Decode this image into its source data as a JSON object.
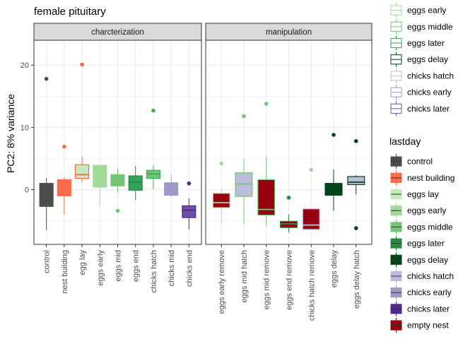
{
  "chart_data": {
    "type": "boxplot",
    "title": "female pituitary",
    "xlabel": "",
    "ylabel": "PC2: 8% variance",
    "ylim": [
      -8.8,
      24
    ],
    "yticks": [
      -10,
      0,
      10,
      20
    ],
    "grid": true,
    "facets": [
      {
        "label": "charcterization",
        "categories": [
          "control",
          "nest building",
          "egg lay",
          "eggs early",
          "eggs mid",
          "eggs end",
          "chicks hatch",
          "chicks mid",
          "chicks end"
        ],
        "boxes": [
          {
            "category": "control",
            "color": "#4d4d4d",
            "fill": "#4d4d4d",
            "whisker_low": -6.5,
            "q1": -2.7,
            "median": -1.4,
            "q3": 1.0,
            "whisker_high": 1.9,
            "outliers": [
              17.8
            ]
          },
          {
            "category": "nest building",
            "color": "#fb6a4a",
            "fill": "#fb6a4a",
            "whisker_low": -4.0,
            "q1": -1.0,
            "median": -0.5,
            "q3": 1.6,
            "whisker_high": 2.0,
            "outliers": [
              6.9
            ]
          },
          {
            "category": "egg lay",
            "color": "#fb6a4a",
            "fill": "#c7e9c0",
            "whisker_low": 1.2,
            "q1": 1.8,
            "median": 2.4,
            "q3": 4.0,
            "whisker_high": 5.3,
            "outliers": [
              20.1
            ]
          },
          {
            "category": "eggs early",
            "color": "#a1d99b",
            "fill": "#a1d99b",
            "whisker_low": -2.7,
            "q1": 0.4,
            "median": 0.6,
            "q3": 3.9,
            "whisker_high": 4.0,
            "outliers": []
          },
          {
            "category": "eggs mid",
            "color": "#74c476",
            "fill": "#74c476",
            "whisker_low": -0.5,
            "q1": 0.6,
            "median": 1.2,
            "q3": 2.4,
            "whisker_high": 3.4,
            "outliers": [
              -3.4
            ]
          },
          {
            "category": "eggs end",
            "color": "#238b45",
            "fill": "#31a354",
            "whisker_low": -1.7,
            "q1": -0.1,
            "median": 1.2,
            "q3": 2.2,
            "whisker_high": 3.8,
            "outliers": []
          },
          {
            "category": "chicks hatch",
            "color": "#41ab5d",
            "fill": "#74c476",
            "whisker_low": 0.1,
            "q1": 1.8,
            "median": 2.5,
            "q3": 3.1,
            "whisker_high": 3.9,
            "outliers": [
              12.7
            ]
          },
          {
            "category": "chicks mid",
            "color": "#9e9ac8",
            "fill": "#9e9ac8",
            "whisker_low": -1.2,
            "q1": -0.9,
            "median": -0.3,
            "q3": 1.1,
            "whisker_high": 2.4,
            "outliers": []
          },
          {
            "category": "chicks end",
            "color": "#54278f",
            "fill": "#6a51a3",
            "whisker_low": -6.4,
            "q1": -4.5,
            "median": -3.3,
            "q3": -2.6,
            "whisker_high": -1.4,
            "outliers": [
              1.0
            ]
          }
        ]
      },
      {
        "label": "manipulation",
        "categories": [
          "eggs early remove",
          "eggs mid hatch",
          "eggs mid remove",
          "eggs end remove",
          "chicks hatch remove",
          "eggs delay",
          "eggs delay hatch"
        ],
        "boxes": [
          {
            "category": "eggs early remove",
            "color": "#a1d99b",
            "fill": "#99000d",
            "whisker_low": -5.5,
            "q1": -2.9,
            "median": -2.1,
            "q3": -0.6,
            "whisker_high": -0.1,
            "outliers": [
              4.2
            ]
          },
          {
            "category": "eggs mid hatch",
            "color": "#74c476",
            "fill": "#bcbddc",
            "whisker_low": -5.5,
            "q1": -1.1,
            "median": 0.9,
            "q3": 2.7,
            "whisker_high": 5.0,
            "outliers": [
              11.8
            ]
          },
          {
            "category": "eggs mid remove",
            "color": "#74c476",
            "fill": "#99000d",
            "whisker_low": -5.9,
            "q1": -4.1,
            "median": -3.2,
            "q3": 1.6,
            "whisker_high": 5.3,
            "outliers": [
              13.8
            ]
          },
          {
            "category": "eggs end remove",
            "color": "#238b45",
            "fill": "#99000d",
            "whisker_low": -6.9,
            "q1": -6.1,
            "median": -5.5,
            "q3": -5.1,
            "whisker_high": -4.0,
            "outliers": [
              -1.3
            ]
          },
          {
            "category": "chicks hatch remove",
            "color": "#bcbddc",
            "fill": "#99000d",
            "whisker_low": -6.4,
            "q1": -6.4,
            "median": -5.7,
            "q3": -3.1,
            "whisker_high": -3.0,
            "outliers": [
              3.2
            ]
          },
          {
            "category": "eggs delay",
            "color": "#00441b",
            "fill": "#00441b",
            "whisker_low": -3.4,
            "q1": -0.9,
            "median": 0.0,
            "q3": 1.0,
            "whisker_high": 3.2,
            "outliers": [
              8.8
            ]
          },
          {
            "category": "eggs delay hatch",
            "color": "#00441b",
            "fill": "#bcbddc",
            "whisker_low": -0.8,
            "q1": 0.8,
            "median": 1.2,
            "q3": 2.1,
            "whisker_high": 2.3,
            "outliers": [
              7.8,
              -6.2
            ]
          }
        ]
      }
    ],
    "legends": [
      {
        "title": "",
        "placement": "top-right",
        "style": "outline",
        "entries": [
          {
            "label": "eggs early",
            "color": "#a1d99b"
          },
          {
            "label": "eggs middle",
            "color": "#74c476"
          },
          {
            "label": "eggs later",
            "color": "#31a354"
          },
          {
            "label": "eggs delay",
            "color": "#00441b"
          },
          {
            "label": "chicks hatch",
            "color": "#bcbddc"
          },
          {
            "label": "chicks early",
            "color": "#9e9ac8"
          },
          {
            "label": "chicks later",
            "color": "#6a51a3"
          }
        ]
      },
      {
        "title": "lastday",
        "placement": "right",
        "style": "filled",
        "entries": [
          {
            "label": "control",
            "color": "#4d4d4d"
          },
          {
            "label": "nest building",
            "color": "#fb6a4a"
          },
          {
            "label": "eggs lay",
            "color": "#c7e9c0"
          },
          {
            "label": "eggs early",
            "color": "#a1d99b"
          },
          {
            "label": "eggs middle",
            "color": "#74c476"
          },
          {
            "label": "eggs later",
            "color": "#238b45"
          },
          {
            "label": "eggs delay",
            "color": "#00441b"
          },
          {
            "label": "chicks hatch",
            "color": "#bcbddc"
          },
          {
            "label": "chicks early",
            "color": "#9e9ac8"
          },
          {
            "label": "chicks later",
            "color": "#54278f"
          },
          {
            "label": "empty nest",
            "color": "#99000d"
          }
        ]
      }
    ]
  }
}
